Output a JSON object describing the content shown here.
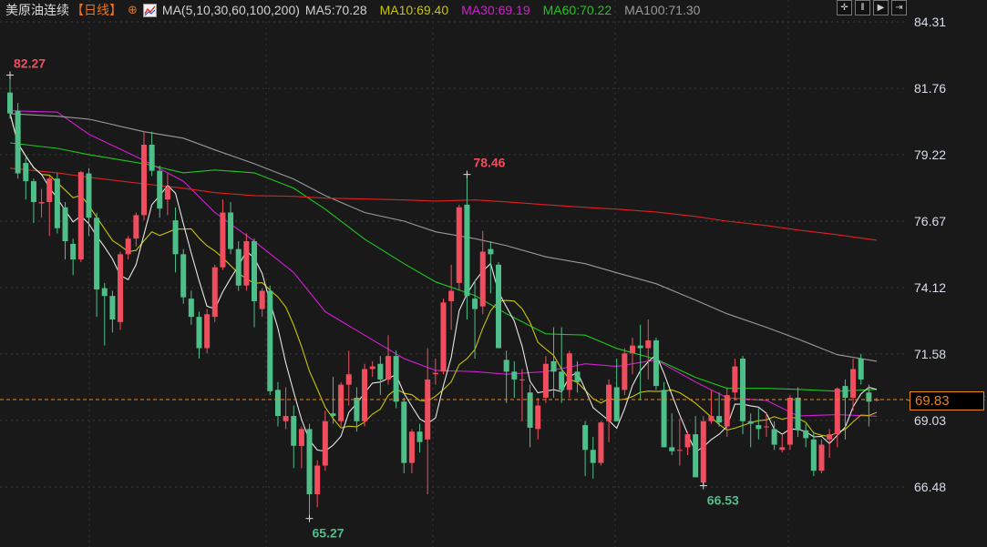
{
  "header": {
    "title": "美原油连续",
    "period": "【日线】",
    "add_icon": "circle-plus-icon",
    "indicator_icon": "chart-icon",
    "ma_label": "MA(5,10,30,60,100,200)",
    "ma5": "MA5:70.28",
    "ma10": "MA10:69.40",
    "ma30": "MA30:69.19",
    "ma60": "MA60:70.22",
    "ma100": "MA100:71.30"
  },
  "toolbar": {
    "icons": [
      "crosshair-icon",
      "zoom-in-range-icon",
      "play-range-icon",
      "exit-icon"
    ],
    "glyphs": [
      "✛",
      "⫴",
      "▶",
      "⇥"
    ]
  },
  "colors": {
    "up": "#f04e5e",
    "down": "#4fbf8a",
    "ma5": "#e6e6e6",
    "ma10": "#c8c400",
    "ma30": "#d21ed2",
    "ma60": "#1ec81e",
    "ma100": "#9a9a9a",
    "ma200": "#e02020",
    "last_price": "#e8851a",
    "background": "#191919"
  },
  "chart_data": {
    "type": "candlestick",
    "y_ticks": [
      "84.31",
      "81.76",
      "79.22",
      "76.67",
      "74.12",
      "71.58",
      "69.03",
      "66.48"
    ],
    "ylim": [
      66.48,
      84.31
    ],
    "grid": true,
    "last_price": "69.83",
    "annotations": {
      "high": {
        "label": "82.27",
        "index": 1
      },
      "mid_high": {
        "label": "78.46",
        "index": 59
      },
      "low": {
        "label": "65.27",
        "index": 39
      },
      "recent_low": {
        "label": "66.53",
        "index": 89
      }
    },
    "ohlc": [
      [
        81.6,
        82.27,
        80.6,
        80.8
      ],
      [
        80.9,
        81.2,
        78.3,
        78.5
      ],
      [
        78.9,
        79.1,
        77.5,
        78.2
      ],
      [
        78.2,
        78.3,
        76.6,
        77.4
      ],
      [
        77.35,
        77.9,
        76.8,
        77.4
      ],
      [
        77.4,
        78.4,
        76.1,
        78.3
      ],
      [
        78.3,
        78.5,
        76.2,
        76.4
      ],
      [
        77.2,
        77.4,
        75.2,
        75.9
      ],
      [
        75.8,
        76.0,
        74.6,
        75.2
      ],
      [
        75.2,
        78.6,
        75.1,
        78.55
      ],
      [
        78.5,
        78.7,
        76.1,
        76.8
      ],
      [
        76.8,
        77.0,
        73.0,
        74.05
      ],
      [
        74.1,
        74.3,
        71.9,
        73.8
      ],
      [
        73.8,
        74.0,
        72.4,
        72.9
      ],
      [
        72.8,
        75.5,
        72.5,
        75.4
      ],
      [
        75.4,
        76.1,
        75.2,
        76.0
      ],
      [
        76.0,
        77.0,
        75.7,
        76.9
      ],
      [
        76.9,
        80.1,
        76.7,
        79.6
      ],
      [
        79.6,
        80.1,
        78.4,
        78.6
      ],
      [
        78.6,
        78.8,
        76.8,
        77.15
      ],
      [
        77.5,
        78.5,
        76.9,
        77.95
      ],
      [
        76.7,
        77.2,
        74.7,
        75.4
      ],
      [
        75.4,
        75.6,
        73.5,
        73.75
      ],
      [
        73.7,
        74.0,
        72.7,
        73.0
      ],
      [
        73.0,
        73.2,
        71.4,
        71.8
      ],
      [
        71.8,
        73.3,
        71.6,
        73.1
      ],
      [
        73.0,
        75.0,
        72.8,
        74.9
      ],
      [
        74.9,
        77.5,
        74.8,
        77.0
      ],
      [
        77.0,
        77.4,
        75.4,
        75.6
      ],
      [
        75.6,
        75.9,
        74.0,
        74.2
      ],
      [
        74.2,
        76.2,
        74.0,
        75.9
      ],
      [
        75.9,
        76.0,
        72.6,
        73.6
      ],
      [
        73.3,
        74.1,
        73.0,
        74.0
      ],
      [
        74.0,
        74.2,
        70.0,
        70.15
      ],
      [
        70.2,
        70.5,
        68.8,
        69.2
      ],
      [
        69.0,
        70.3,
        68.7,
        69.2
      ],
      [
        69.2,
        69.6,
        67.2,
        68.06
      ],
      [
        68.05,
        68.8,
        67.2,
        68.7
      ],
      [
        68.7,
        68.9,
        65.27,
        66.2
      ],
      [
        66.2,
        67.5,
        65.7,
        67.3
      ],
      [
        67.3,
        69.4,
        67.1,
        69.0
      ],
      [
        69.3,
        70.7,
        68.9,
        69.2
      ],
      [
        69.0,
        70.5,
        68.8,
        70.4
      ],
      [
        70.4,
        71.7,
        69.6,
        70.8
      ],
      [
        69.9,
        70.3,
        68.6,
        69.0
      ],
      [
        69.0,
        71.2,
        68.8,
        71.0
      ],
      [
        71.0,
        71.3,
        70.7,
        71.1
      ],
      [
        71.2,
        71.5,
        70.0,
        70.6
      ],
      [
        70.6,
        72.3,
        70.4,
        71.5
      ],
      [
        71.5,
        71.7,
        69.5,
        69.75
      ],
      [
        69.75,
        69.9,
        67.0,
        67.4
      ],
      [
        67.4,
        68.7,
        67.0,
        68.6
      ],
      [
        68.6,
        68.9,
        67.8,
        68.2
      ],
      [
        68.3,
        71.8,
        66.2,
        70.6
      ],
      [
        70.8,
        71.4,
        70.4,
        70.85
      ],
      [
        70.9,
        73.7,
        70.8,
        73.55
      ],
      [
        73.6,
        75.0,
        72.5,
        74.0
      ],
      [
        74.3,
        77.3,
        74.0,
        77.2
      ],
      [
        77.3,
        78.46,
        72.9,
        73.8
      ],
      [
        73.7,
        74.4,
        71.4,
        73.3
      ],
      [
        73.4,
        76.3,
        73.1,
        75.5
      ],
      [
        75.6,
        75.9,
        73.9,
        75.4
      ],
      [
        75.0,
        75.1,
        71.8,
        71.8
      ],
      [
        71.35,
        71.7,
        69.7,
        70.9
      ],
      [
        70.9,
        71.3,
        69.9,
        70.6
      ],
      [
        70.6,
        71.0,
        69.0,
        70.6
      ],
      [
        70.1,
        70.4,
        68.0,
        68.75
      ],
      [
        68.7,
        69.9,
        68.3,
        69.6
      ],
      [
        69.9,
        71.5,
        69.7,
        71.2
      ],
      [
        71.3,
        72.6,
        69.9,
        70.9
      ],
      [
        70.9,
        72.6,
        69.7,
        70.2
      ],
      [
        70.2,
        71.7,
        69.9,
        71.6
      ],
      [
        70.9,
        71.3,
        70.1,
        70.5
      ],
      [
        68.85,
        69.0,
        66.9,
        67.9
      ],
      [
        67.9,
        68.4,
        66.8,
        67.4
      ],
      [
        67.4,
        69.0,
        67.3,
        68.95
      ],
      [
        69.0,
        70.6,
        68.2,
        70.4
      ],
      [
        70.3,
        71.4,
        69.0,
        69.0
      ],
      [
        70.2,
        71.8,
        70.0,
        71.6
      ],
      [
        71.6,
        72.2,
        70.8,
        71.9
      ],
      [
        71.9,
        72.7,
        69.8,
        71.8
      ],
      [
        71.8,
        72.9,
        70.6,
        72.1
      ],
      [
        72.1,
        72.2,
        70.2,
        70.35
      ],
      [
        70.2,
        70.5,
        68.0,
        68.0
      ],
      [
        68.0,
        69.3,
        67.7,
        67.85
      ],
      [
        67.9,
        69.1,
        67.3,
        67.9
      ],
      [
        68.0,
        68.6,
        67.7,
        68.5
      ],
      [
        68.5,
        69.2,
        66.9,
        66.85
      ],
      [
        66.65,
        69.2,
        66.53,
        69.0
      ],
      [
        69.0,
        70.2,
        68.9,
        69.2
      ],
      [
        69.2,
        70.1,
        68.8,
        68.95
      ],
      [
        68.8,
        70.3,
        68.4,
        70.0
      ],
      [
        70.1,
        71.4,
        69.8,
        71.1
      ],
      [
        71.4,
        71.5,
        68.5,
        69.0
      ],
      [
        69.0,
        69.3,
        68.0,
        68.9
      ],
      [
        68.85,
        69.5,
        68.3,
        68.7
      ],
      [
        68.8,
        69.3,
        68.4,
        68.8
      ],
      [
        68.7,
        69.0,
        67.9,
        68.1
      ],
      [
        67.9,
        68.5,
        67.8,
        68.0
      ],
      [
        68.1,
        70.0,
        67.9,
        69.9
      ],
      [
        69.9,
        70.3,
        68.4,
        68.65
      ],
      [
        68.65,
        68.9,
        68.0,
        68.35
      ],
      [
        68.3,
        68.6,
        66.9,
        67.1
      ],
      [
        67.1,
        68.3,
        67.0,
        68.1
      ],
      [
        68.3,
        68.7,
        67.6,
        68.5
      ],
      [
        68.5,
        70.3,
        68.0,
        70.25
      ],
      [
        70.35,
        70.6,
        68.3,
        69.9
      ],
      [
        69.9,
        71.4,
        69.4,
        71.0
      ],
      [
        71.4,
        71.58,
        70.4,
        70.6
      ],
      [
        70.1,
        70.4,
        68.8,
        69.75
      ],
      [
        69.8,
        69.9,
        69.75,
        69.83
      ]
    ],
    "ma_sample_index": [
      1,
      7,
      11,
      18,
      23,
      27,
      32,
      37,
      41,
      46,
      51,
      55,
      60,
      64,
      69,
      74,
      78,
      83,
      88,
      92,
      97,
      101,
      106,
      111
    ],
    "series": [
      {
        "name": "MA30",
        "values": [
          80.9,
          80.85,
          80.0,
          79.0,
          78.2,
          77.0,
          75.9,
          74.7,
          73.2,
          72.3,
          71.4,
          70.95,
          70.9,
          70.8,
          70.9,
          71.2,
          71.1,
          71.35,
          70.5,
          69.9,
          69.8,
          69.2,
          69.25,
          69.19
        ]
      },
      {
        "name": "MA60",
        "values": [
          79.67,
          79.46,
          79.22,
          78.87,
          78.52,
          78.63,
          78.52,
          77.93,
          77.13,
          75.98,
          75.04,
          74.34,
          73.82,
          73.12,
          72.35,
          72.3,
          71.79,
          71.38,
          70.68,
          70.26,
          70.26,
          70.22,
          70.15,
          70.22
        ]
      },
      {
        "name": "MA100",
        "values": [
          80.79,
          80.69,
          80.58,
          80.1,
          79.85,
          79.4,
          78.87,
          78.28,
          77.65,
          77.0,
          76.67,
          76.26,
          76.0,
          75.73,
          75.3,
          75.04,
          74.69,
          74.27,
          73.64,
          73.12,
          72.6,
          72.15,
          71.55,
          71.3
        ]
      },
      {
        "name": "MA200",
        "values": [
          78.7,
          78.52,
          78.35,
          78.1,
          77.93,
          77.76,
          77.65,
          77.62,
          77.55,
          77.52,
          77.48,
          77.44,
          77.48,
          77.41,
          77.3,
          77.2,
          77.13,
          77.02,
          76.85,
          76.67,
          76.5,
          76.33,
          76.15,
          75.94
        ]
      }
    ]
  }
}
